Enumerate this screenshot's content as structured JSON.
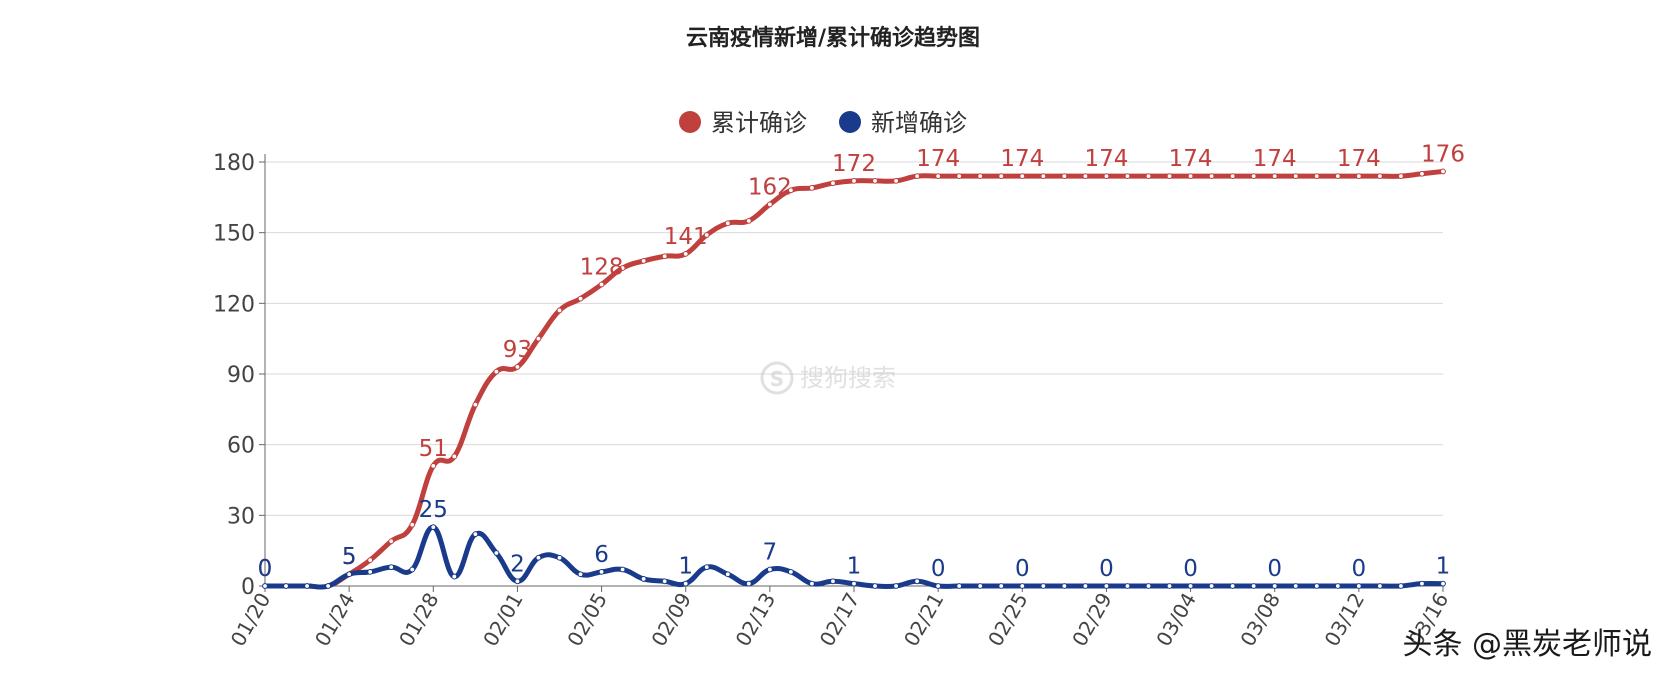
{
  "chart_data": {
    "type": "line",
    "title": "云南疫情新增/累计确诊趋势图",
    "ylim": [
      0,
      180
    ],
    "yticks": [
      0,
      30,
      60,
      90,
      120,
      150,
      180
    ],
    "grid": true,
    "legend_position": "top-center",
    "x": [
      "01/20",
      "01/21",
      "01/22",
      "01/23",
      "01/24",
      "01/25",
      "01/26",
      "01/27",
      "01/28",
      "01/29",
      "01/30",
      "01/31",
      "02/01",
      "02/02",
      "02/03",
      "02/04",
      "02/05",
      "02/06",
      "02/07",
      "02/08",
      "02/09",
      "02/10",
      "02/11",
      "02/12",
      "02/13",
      "02/14",
      "02/15",
      "02/16",
      "02/17",
      "02/18",
      "02/19",
      "02/20",
      "02/21",
      "02/22",
      "02/23",
      "02/24",
      "02/25",
      "02/26",
      "02/27",
      "02/28",
      "02/29",
      "03/01",
      "03/02",
      "03/03",
      "03/04",
      "03/05",
      "03/06",
      "03/07",
      "03/08",
      "03/09",
      "03/10",
      "03/11",
      "03/12",
      "03/13",
      "03/14",
      "03/15",
      "03/16"
    ],
    "x_tick_labels": [
      "01/20",
      "01/24",
      "01/28",
      "02/01",
      "02/05",
      "02/09",
      "02/13",
      "02/17",
      "02/21",
      "02/25",
      "02/29",
      "03/04",
      "03/08",
      "03/12",
      "03/16"
    ],
    "series": [
      {
        "name": "累计确诊",
        "color": "#c0403e",
        "values": [
          0,
          0,
          0,
          0,
          5,
          11,
          19,
          26,
          51,
          55,
          77,
          91,
          93,
          105,
          117,
          122,
          128,
          135,
          138,
          140,
          141,
          149,
          154,
          155,
          162,
          168,
          169,
          171,
          172,
          172,
          172,
          174,
          174,
          174,
          174,
          174,
          174,
          174,
          174,
          174,
          174,
          174,
          174,
          174,
          174,
          174,
          174,
          174,
          174,
          174,
          174,
          174,
          174,
          174,
          174,
          175,
          176
        ]
      },
      {
        "name": "新增确诊",
        "color": "#1a3b8b",
        "values": [
          0,
          0,
          0,
          0,
          5,
          6,
          8,
          7,
          25,
          4,
          22,
          14,
          2,
          12,
          12,
          5,
          6,
          7,
          3,
          2,
          1,
          8,
          5,
          1,
          7,
          6,
          1,
          2,
          1,
          0,
          0,
          2,
          0,
          0,
          0,
          0,
          0,
          0,
          0,
          0,
          0,
          0,
          0,
          0,
          0,
          0,
          0,
          0,
          0,
          0,
          0,
          0,
          0,
          0,
          0,
          1,
          1
        ]
      }
    ],
    "labeled_indices": [
      0,
      4,
      8,
      12,
      16,
      20,
      24,
      28,
      32,
      36,
      40,
      44,
      48,
      52,
      56
    ]
  },
  "watermark": {
    "sogou": "搜狗搜索",
    "author": "头条 @黑炭老师说"
  }
}
